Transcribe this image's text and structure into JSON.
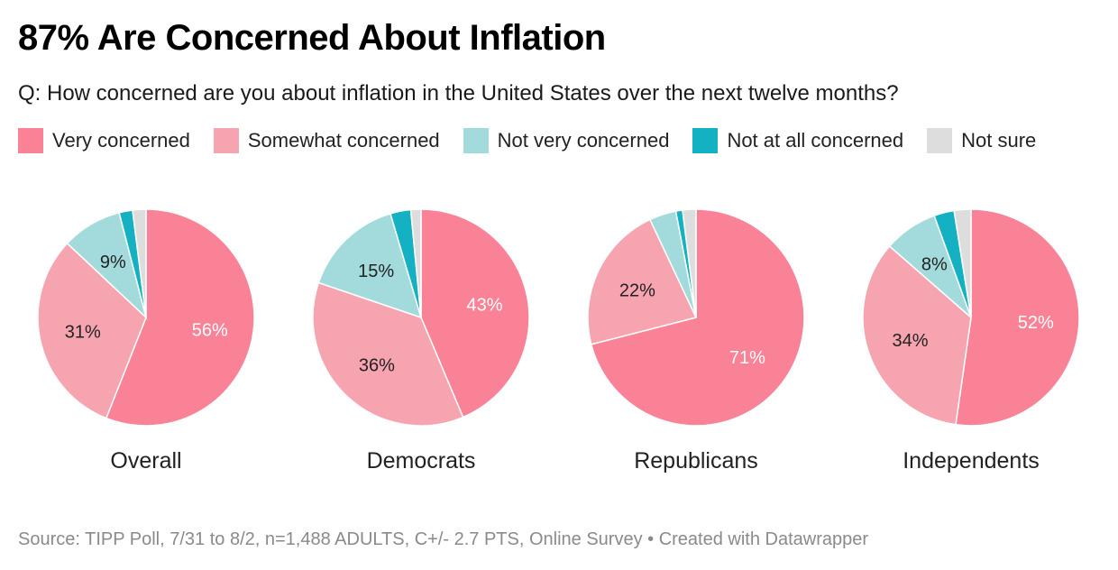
{
  "title": "87% Are Concerned About Inflation",
  "subtitle": "Q: How concerned are you about inflation in the United States over the next twelve months?",
  "legend": [
    {
      "label": "Very concerned",
      "color": "#f98297"
    },
    {
      "label": "Somewhat concerned",
      "color": "#f6a4b0"
    },
    {
      "label": "Not very concerned",
      "color": "#a3dadc"
    },
    {
      "label": "Not at all concerned",
      "color": "#13b1c2"
    },
    {
      "label": "Not sure",
      "color": "#dddddd"
    }
  ],
  "footer": "Source: TIPP Poll, 7/31 to 8/2, n=1,488 ADULTS, C+/- 2.7 PTS, Online Survey • Created with Datawrapper",
  "chart_data": [
    {
      "type": "pie",
      "title": "Overall",
      "categories": [
        "Very concerned",
        "Somewhat concerned",
        "Not very concerned",
        "Not at all concerned",
        "Not sure"
      ],
      "values": [
        56,
        31,
        9,
        2,
        2
      ],
      "labels": [
        "56%",
        "31%",
        "9%",
        "",
        ""
      ]
    },
    {
      "type": "pie",
      "title": "Democrats",
      "categories": [
        "Very concerned",
        "Somewhat concerned",
        "Not very concerned",
        "Not at all concerned",
        "Not sure"
      ],
      "values": [
        43,
        36,
        15,
        3,
        1.5
      ],
      "labels": [
        "43%",
        "36%",
        "15%",
        "",
        ""
      ]
    },
    {
      "type": "pie",
      "title": "Republicans",
      "categories": [
        "Very concerned",
        "Somewhat concerned",
        "Not very concerned",
        "Not at all concerned",
        "Not sure"
      ],
      "values": [
        71,
        22,
        4,
        1,
        2
      ],
      "labels": [
        "71%",
        "22%",
        "",
        "",
        ""
      ]
    },
    {
      "type": "pie",
      "title": "Independents",
      "categories": [
        "Very concerned",
        "Somewhat concerned",
        "Not very concerned",
        "Not at all concerned",
        "Not sure"
      ],
      "values": [
        52,
        34,
        8,
        3,
        2.5
      ],
      "labels": [
        "52%",
        "34%",
        "8%",
        "",
        ""
      ]
    }
  ]
}
